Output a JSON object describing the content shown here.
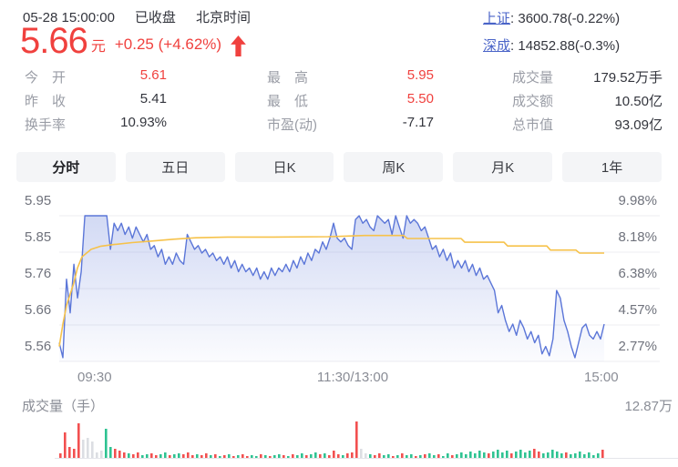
{
  "colors": {
    "up_red": "#f0413e",
    "text_dark": "#33353d",
    "text_gray": "#9a9da6",
    "axis_gray": "#6f727c",
    "link_blue": "#4a64c8",
    "price_line": "#5b76d8",
    "price_fill": "#7b91df",
    "avg_line": "#f6c24a",
    "grid": "#ececf1",
    "tab_bg": "#f4f5f7",
    "vol_up": "#f25050",
    "vol_down": "#2fc392",
    "vol_neutral": "#dcdee3"
  },
  "header": {
    "datetime": "05-28 15:00:00",
    "market_status": "已收盘",
    "timezone": "北京时间",
    "price": "5.66",
    "currency_unit": "元",
    "change": "+0.25 (+4.62%)",
    "indices": [
      {
        "label": "上证",
        "value": ": 3600.78(-0.22%)"
      },
      {
        "label": "深成",
        "value": ": 14852.88(-0.3%)"
      }
    ]
  },
  "stats": {
    "rows": [
      {
        "label": "今　开",
        "value": "5.61",
        "red": true
      },
      {
        "label": "昨　收",
        "value": "5.41",
        "red": false
      },
      {
        "label": "换手率",
        "value": "10.93%",
        "red": false
      },
      {
        "label": "最　高",
        "value": "5.95",
        "red": true
      },
      {
        "label": "最　低",
        "value": "5.50",
        "red": true
      },
      {
        "label": "市盈(动)",
        "value": "-7.17",
        "red": false
      },
      {
        "label": "成交量",
        "value": "179.52万手",
        "red": false
      },
      {
        "label": "成交额",
        "value": "10.50亿",
        "red": false
      },
      {
        "label": "总市值",
        "value": "93.09亿",
        "red": false
      }
    ]
  },
  "tabs": {
    "active_index": 0,
    "items": [
      {
        "label": "分时"
      },
      {
        "label": "五日"
      },
      {
        "label": "日K"
      },
      {
        "label": "周K"
      },
      {
        "label": "月K"
      },
      {
        "label": "1年"
      }
    ]
  },
  "chart_data": {
    "type": "line",
    "title": "分时走势 (intraday price)",
    "prev_close": 5.41,
    "price_range": [
      5.56,
      5.95
    ],
    "y_axis_price": [
      "5.95",
      "5.85",
      "5.76",
      "5.66",
      "5.56"
    ],
    "y_axis_percent": [
      "9.98%",
      "8.18%",
      "6.38%",
      "4.57%",
      "2.77%"
    ],
    "x_axis_labels": [
      "09:30",
      "11:30/13:00",
      "15:00"
    ],
    "grid": true,
    "series": [
      {
        "name": "price",
        "color": "#5b76d8",
        "values": [
          5.61,
          5.57,
          5.78,
          5.69,
          5.82,
          5.73,
          5.8,
          5.95,
          5.95,
          5.95,
          5.95,
          5.95,
          5.95,
          5.95,
          5.86,
          5.93,
          5.91,
          5.93,
          5.9,
          5.92,
          5.89,
          5.92,
          5.9,
          5.88,
          5.9,
          5.86,
          5.87,
          5.84,
          5.86,
          5.82,
          5.84,
          5.82,
          5.85,
          5.83,
          5.82,
          5.9,
          5.88,
          5.86,
          5.87,
          5.85,
          5.86,
          5.84,
          5.85,
          5.83,
          5.84,
          5.82,
          5.84,
          5.81,
          5.83,
          5.8,
          5.82,
          5.8,
          5.81,
          5.79,
          5.81,
          5.78,
          5.8,
          5.78,
          5.81,
          5.79,
          5.81,
          5.8,
          5.82,
          5.8,
          5.83,
          5.81,
          5.84,
          5.82,
          5.85,
          5.83,
          5.86,
          5.85,
          5.88,
          5.86,
          5.89,
          5.93,
          5.89,
          5.88,
          5.89,
          5.87,
          5.86,
          5.94,
          5.95,
          5.93,
          5.94,
          5.92,
          5.91,
          5.95,
          5.94,
          5.93,
          5.94,
          5.9,
          5.95,
          5.92,
          5.89,
          5.95,
          5.93,
          5.94,
          5.93,
          5.91,
          5.92,
          5.89,
          5.86,
          5.87,
          5.84,
          5.86,
          5.83,
          5.85,
          5.81,
          5.83,
          5.81,
          5.83,
          5.8,
          5.82,
          5.79,
          5.81,
          5.78,
          5.79,
          5.77,
          5.75,
          5.69,
          5.71,
          5.67,
          5.64,
          5.66,
          5.63,
          5.67,
          5.65,
          5.62,
          5.64,
          5.61,
          5.63,
          5.58,
          5.6,
          5.575,
          5.62,
          5.75,
          5.73,
          5.67,
          5.64,
          5.6,
          5.57,
          5.61,
          5.65,
          5.66,
          5.63,
          5.62,
          5.64,
          5.62,
          5.66
        ]
      },
      {
        "name": "avg",
        "color": "#f6c24a",
        "points": [
          [
            65,
            5.6
          ],
          [
            69,
            5.66
          ],
          [
            73,
            5.71
          ],
          [
            77,
            5.74
          ],
          [
            81,
            5.77
          ],
          [
            85,
            5.81
          ],
          [
            90,
            5.84
          ],
          [
            95,
            5.85
          ],
          [
            100,
            5.86
          ],
          [
            110,
            5.868
          ],
          [
            125,
            5.873
          ],
          [
            145,
            5.878
          ],
          [
            165,
            5.882
          ],
          [
            190,
            5.887
          ],
          [
            215,
            5.891
          ],
          [
            250,
            5.893
          ],
          [
            300,
            5.893
          ],
          [
            360,
            5.894
          ],
          [
            400,
            5.897
          ],
          [
            443,
            5.897
          ],
          [
            447,
            5.889
          ],
          [
            506,
            5.889
          ],
          [
            510,
            5.879
          ],
          [
            553,
            5.879
          ],
          [
            557,
            5.869
          ],
          [
            600,
            5.869
          ],
          [
            604,
            5.858
          ],
          [
            632,
            5.858
          ],
          [
            636,
            5.85
          ],
          [
            663,
            5.85
          ]
        ]
      }
    ],
    "volume": {
      "label": "成交量（手）",
      "max_label": "12.87万",
      "bars": [
        [
          5,
          "r"
        ],
        [
          28,
          "r"
        ],
        [
          12,
          "r"
        ],
        [
          10,
          "r"
        ],
        [
          38,
          "r"
        ],
        [
          20,
          "n"
        ],
        [
          22,
          "n"
        ],
        [
          18,
          "n"
        ],
        [
          6,
          "n"
        ],
        [
          8,
          "n"
        ],
        [
          32,
          "g"
        ],
        [
          12,
          "g"
        ],
        [
          10,
          "r"
        ],
        [
          8,
          "r"
        ],
        [
          6,
          "r"
        ],
        [
          5,
          "g"
        ],
        [
          4,
          "r"
        ],
        [
          6,
          "r"
        ],
        [
          3,
          "g"
        ],
        [
          4,
          "g"
        ],
        [
          5,
          "r"
        ],
        [
          3,
          "r"
        ],
        [
          4,
          "g"
        ],
        [
          6,
          "g"
        ],
        [
          3,
          "r"
        ],
        [
          4,
          "g"
        ],
        [
          5,
          "g"
        ],
        [
          4,
          "r"
        ],
        [
          6,
          "r"
        ],
        [
          3,
          "r"
        ],
        [
          4,
          "g"
        ],
        [
          3,
          "r"
        ],
        [
          5,
          "r"
        ],
        [
          3,
          "g"
        ],
        [
          4,
          "r"
        ],
        [
          2,
          "g"
        ],
        [
          3,
          "r"
        ],
        [
          4,
          "g"
        ],
        [
          2,
          "r"
        ],
        [
          3,
          "g"
        ],
        [
          4,
          "r"
        ],
        [
          2,
          "r"
        ],
        [
          3,
          "g"
        ],
        [
          2,
          "g"
        ],
        [
          4,
          "r"
        ],
        [
          3,
          "g"
        ],
        [
          2,
          "r"
        ],
        [
          3,
          "g"
        ],
        [
          4,
          "g"
        ],
        [
          3,
          "r"
        ],
        [
          2,
          "g"
        ],
        [
          4,
          "r"
        ],
        [
          3,
          "g"
        ],
        [
          5,
          "g"
        ],
        [
          3,
          "r"
        ],
        [
          4,
          "g"
        ],
        [
          6,
          "g"
        ],
        [
          4,
          "r"
        ],
        [
          5,
          "g"
        ],
        [
          3,
          "r"
        ],
        [
          8,
          "r"
        ],
        [
          4,
          "r"
        ],
        [
          3,
          "g"
        ],
        [
          5,
          "r"
        ],
        [
          6,
          "r"
        ],
        [
          40,
          "r"
        ],
        [
          10,
          "n"
        ],
        [
          5,
          "n"
        ],
        [
          4,
          "g"
        ],
        [
          3,
          "r"
        ],
        [
          5,
          "r"
        ],
        [
          3,
          "g"
        ],
        [
          4,
          "g"
        ],
        [
          2,
          "r"
        ],
        [
          3,
          "g"
        ],
        [
          5,
          "r"
        ],
        [
          3,
          "g"
        ],
        [
          4,
          "g"
        ],
        [
          2,
          "r"
        ],
        [
          3,
          "g"
        ],
        [
          4,
          "r"
        ],
        [
          5,
          "g"
        ],
        [
          3,
          "g"
        ],
        [
          4,
          "r"
        ],
        [
          2,
          "g"
        ],
        [
          5,
          "g"
        ],
        [
          3,
          "r"
        ],
        [
          4,
          "g"
        ],
        [
          6,
          "g"
        ],
        [
          4,
          "g"
        ],
        [
          7,
          "g"
        ],
        [
          5,
          "g"
        ],
        [
          8,
          "g"
        ],
        [
          6,
          "g"
        ],
        [
          5,
          "r"
        ],
        [
          7,
          "g"
        ],
        [
          9,
          "g"
        ],
        [
          6,
          "g"
        ],
        [
          8,
          "g"
        ],
        [
          5,
          "r"
        ],
        [
          7,
          "g"
        ],
        [
          9,
          "g"
        ],
        [
          6,
          "g"
        ],
        [
          8,
          "g"
        ],
        [
          10,
          "r"
        ],
        [
          7,
          "r"
        ],
        [
          5,
          "g"
        ],
        [
          6,
          "g"
        ],
        [
          9,
          "g"
        ],
        [
          7,
          "g"
        ],
        [
          5,
          "g"
        ],
        [
          6,
          "r"
        ],
        [
          4,
          "g"
        ],
        [
          5,
          "g"
        ],
        [
          7,
          "g"
        ],
        [
          4,
          "g"
        ],
        [
          6,
          "g"
        ],
        [
          3,
          "g"
        ],
        [
          5,
          "g"
        ],
        [
          9,
          "r"
        ]
      ]
    }
  }
}
